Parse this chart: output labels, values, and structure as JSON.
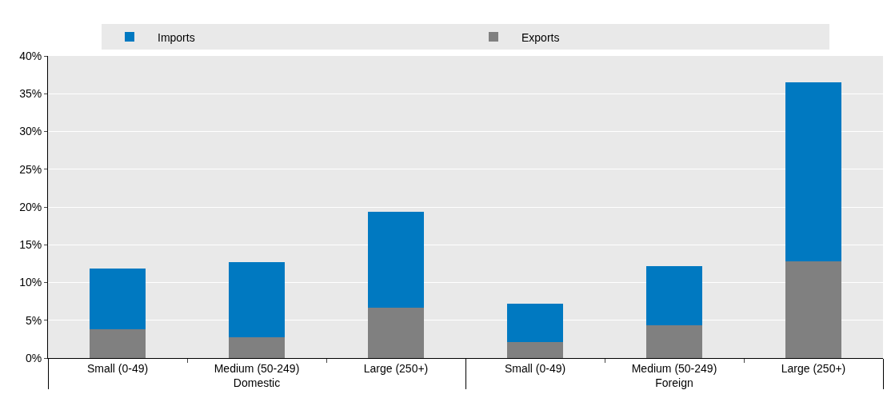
{
  "chart_data": {
    "type": "bar",
    "stacked": true,
    "categories": [
      "Small (0-49)",
      "Medium (50-249)",
      "Large (250+)",
      "Small (0-49)",
      "Medium (50-249)",
      "Large (250+)"
    ],
    "annotations": [
      "Domestic",
      "Foreign"
    ],
    "series": [
      {
        "name": "Exports",
        "color": "#808080",
        "values": [
          3.8,
          2.7,
          6.7,
          2.1,
          4.3,
          12.8
        ]
      },
      {
        "name": "Imports",
        "color": "#0079c1",
        "values": [
          8.0,
          10.0,
          12.7,
          5.1,
          7.9,
          23.7
        ]
      }
    ],
    "ylim": [
      0,
      40
    ],
    "yticks": [
      {
        "value": 0,
        "label": "0%"
      },
      {
        "value": 5,
        "label": "5%"
      },
      {
        "value": 10,
        "label": "10%"
      },
      {
        "value": 15,
        "label": "15%"
      },
      {
        "value": 20,
        "label": "20%"
      },
      {
        "value": 25,
        "label": "25%"
      },
      {
        "value": 30,
        "label": "30%"
      },
      {
        "value": 35,
        "label": "35%"
      },
      {
        "value": 40,
        "label": "40%"
      }
    ],
    "grid": "y",
    "legend": "top"
  }
}
